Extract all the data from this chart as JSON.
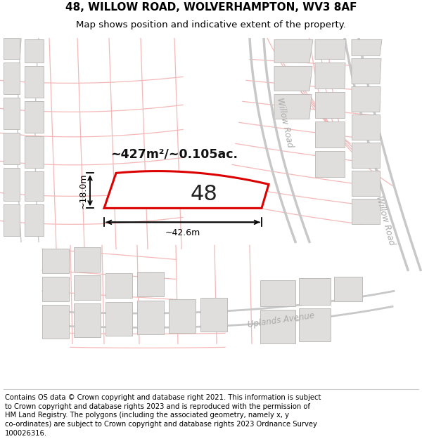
{
  "title_line1": "48, WILLOW ROAD, WOLVERHAMPTON, WV3 8AF",
  "title_line2": "Map shows position and indicative extent of the property.",
  "footer_lines": [
    "Contains OS data © Crown copyright and database right 2021. This information is subject",
    "to Crown copyright and database rights 2023 and is reproduced with the permission of",
    "HM Land Registry. The polygons (including the associated geometry, namely x, y",
    "co-ordinates) are subject to Crown copyright and database rights 2023 Ordnance Survey",
    "100026316."
  ],
  "map_bg_color": "#ffffff",
  "street_color": "#f5b8b8",
  "road_border_color": "#c8c8c8",
  "building_color": "#e0dedd",
  "building_edge_color": "#b8b5b2",
  "property_outline_color": "#dd0000",
  "area_text": "~427m²/~0.105ac.",
  "property_number": "48",
  "dim_width": "~42.6m",
  "dim_height": "~18.0m",
  "road_label_1": "Willow Road",
  "road_label_2": "Willow Road",
  "road_label_3": "Uplands Avenue",
  "title_fontsize": 11,
  "subtitle_fontsize": 9.5,
  "footer_fontsize": 7.2
}
